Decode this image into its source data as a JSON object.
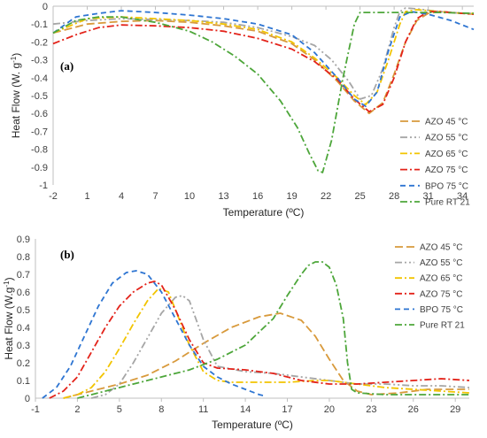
{
  "colors": {
    "AZO 45 °C": "#d89a3c",
    "AZO 55 °C": "#a6a6a6",
    "AZO 65 °C": "#f2c400",
    "AZO 75 °C": "#e3231a",
    "BPO 75 °C": "#2e75d2",
    "Pure RT 21": "#4da63a"
  },
  "chart_data": [
    {
      "type": "line",
      "panel_label": "(a)",
      "ylabel": "Heat Flow (W. g",
      "ylabel_sup": "-1",
      "ylabel_tail": ")",
      "xlabel": "Temperature (ºC)",
      "xlim": [
        -2,
        35
      ],
      "ylim": [
        -1,
        0
      ],
      "xticks": [
        "-2",
        "1",
        "4",
        "7",
        "10",
        "13",
        "16",
        "19",
        "22",
        "25",
        "28",
        "31",
        "34"
      ],
      "yticks": [
        "0",
        "-0.1",
        "-0.2",
        "-0.3",
        "-0.4",
        "-0.5",
        "-0.6",
        "-0.7",
        "-0.8",
        "-0.9",
        "-1"
      ],
      "legend_position": "right",
      "series": [
        {
          "name": "AZO 45 °C",
          "dash": "long",
          "x": [
            -2,
            1,
            4,
            7,
            10,
            13,
            16,
            19,
            21,
            23,
            24.5,
            25.8,
            27,
            28,
            29,
            30,
            31,
            32,
            33,
            34,
            35
          ],
          "y": [
            -0.15,
            -0.1,
            -0.085,
            -0.08,
            -0.09,
            -0.11,
            -0.14,
            -0.21,
            -0.3,
            -0.42,
            -0.53,
            -0.6,
            -0.54,
            -0.38,
            -0.2,
            -0.08,
            -0.04,
            -0.03,
            -0.035,
            -0.04,
            -0.045
          ]
        },
        {
          "name": "AZO 55 °C",
          "dash": "dashdotdot",
          "x": [
            -2,
            1,
            4,
            7,
            10,
            13,
            16,
            19,
            21,
            22.5,
            24,
            25,
            26,
            27,
            28,
            28.5,
            29,
            30,
            32,
            34,
            35
          ],
          "y": [
            -0.1,
            -0.08,
            -0.07,
            -0.075,
            -0.08,
            -0.09,
            -0.12,
            -0.17,
            -0.22,
            -0.3,
            -0.42,
            -0.52,
            -0.5,
            -0.35,
            -0.12,
            -0.03,
            -0.01,
            -0.015,
            -0.03,
            -0.04,
            -0.04
          ]
        },
        {
          "name": "AZO 65 °C",
          "dash": "dashdot",
          "x": [
            -2,
            1,
            4,
            7,
            10,
            13,
            16,
            19,
            21,
            23,
            24.5,
            25.5,
            26.5,
            27.5,
            28.5,
            29,
            30,
            32,
            34,
            35
          ],
          "y": [
            -0.15,
            -0.07,
            -0.06,
            -0.07,
            -0.08,
            -0.1,
            -0.13,
            -0.2,
            -0.29,
            -0.4,
            -0.5,
            -0.55,
            -0.48,
            -0.3,
            -0.1,
            -0.03,
            -0.02,
            -0.03,
            -0.04,
            -0.04
          ]
        },
        {
          "name": "AZO 75 °C",
          "dash": "dashdot",
          "x": [
            -2,
            0,
            2,
            4,
            7,
            10,
            13,
            16,
            19,
            21,
            23,
            24.5,
            25.8,
            27,
            28,
            29,
            30,
            31,
            32,
            34,
            35
          ],
          "y": [
            -0.21,
            -0.16,
            -0.12,
            -0.105,
            -0.11,
            -0.12,
            -0.14,
            -0.18,
            -0.24,
            -0.31,
            -0.41,
            -0.52,
            -0.59,
            -0.55,
            -0.4,
            -0.2,
            -0.07,
            -0.03,
            -0.03,
            -0.04,
            -0.045
          ]
        },
        {
          "name": "BPO 75 °C",
          "dash": "dash",
          "x": [
            -2,
            0,
            2,
            4,
            7,
            10,
            13,
            16,
            19,
            21,
            23,
            24.5,
            25.5,
            26.5,
            27.5,
            28.5,
            29.5,
            31,
            33,
            35
          ],
          "y": [
            -0.15,
            -0.06,
            -0.04,
            -0.025,
            -0.035,
            -0.05,
            -0.07,
            -0.1,
            -0.16,
            -0.26,
            -0.4,
            -0.52,
            -0.56,
            -0.48,
            -0.25,
            -0.06,
            -0.03,
            -0.045,
            -0.08,
            -0.13
          ]
        },
        {
          "name": "Pure RT 21",
          "dash": "dashdot",
          "x": [
            -2,
            0,
            2,
            4,
            7,
            10,
            12,
            14,
            16,
            18,
            19.5,
            20.5,
            21.3,
            21.7,
            22.5,
            23.5,
            24.5,
            25,
            26,
            28,
            30,
            32,
            35
          ],
          "y": [
            -0.15,
            -0.08,
            -0.06,
            -0.06,
            -0.09,
            -0.14,
            -0.2,
            -0.28,
            -0.38,
            -0.53,
            -0.68,
            -0.82,
            -0.92,
            -0.93,
            -0.75,
            -0.4,
            -0.1,
            -0.035,
            -0.035,
            -0.035,
            -0.035,
            -0.035,
            -0.04
          ]
        }
      ]
    },
    {
      "type": "line",
      "panel_label": "(b)",
      "ylabel": "Heat Flow (W.g",
      "ylabel_sup": "-1",
      "ylabel_tail": ")",
      "xlabel": "Temperature (ºC)",
      "xlim": [
        -1,
        30
      ],
      "ylim": [
        0,
        0.9
      ],
      "xticks": [
        "-1",
        "2",
        "5",
        "8",
        "11",
        "14",
        "17",
        "20",
        "23",
        "26",
        "29"
      ],
      "yticks": [
        "0",
        "0.1",
        "0.2",
        "0.3",
        "0.4",
        "0.5",
        "0.6",
        "0.7",
        "0.8",
        "0.9"
      ],
      "legend_position": "right",
      "series": [
        {
          "name": "AZO 45 °C",
          "dash": "long",
          "x": [
            1,
            3,
            5,
            7,
            9,
            11,
            13,
            15,
            16.5,
            18,
            19,
            20,
            21,
            22,
            23,
            25,
            27,
            29,
            30
          ],
          "y": [
            0.0,
            0.04,
            0.08,
            0.13,
            0.21,
            0.31,
            0.4,
            0.46,
            0.48,
            0.44,
            0.35,
            0.22,
            0.1,
            0.04,
            0.02,
            0.03,
            0.05,
            0.05,
            0.05
          ]
        },
        {
          "name": "AZO 55 °C",
          "dash": "dashdotdot",
          "x": [
            3,
            4,
            5,
            6,
            7,
            8,
            9,
            9.5,
            10,
            11,
            12,
            14,
            16,
            18,
            20,
            22,
            24,
            26,
            28,
            30
          ],
          "y": [
            0.0,
            0.02,
            0.08,
            0.2,
            0.34,
            0.48,
            0.57,
            0.58,
            0.55,
            0.33,
            0.18,
            0.15,
            0.14,
            0.12,
            0.1,
            0.08,
            0.08,
            0.07,
            0.07,
            0.06
          ]
        },
        {
          "name": "AZO 65 °C",
          "dash": "dashdot",
          "x": [
            1,
            2,
            3,
            4,
            5,
            6,
            7,
            7.8,
            8.5,
            9,
            10,
            11,
            12,
            13,
            15,
            17,
            19,
            20,
            22,
            24,
            26,
            28,
            30
          ],
          "y": [
            0.0,
            0.02,
            0.06,
            0.15,
            0.28,
            0.42,
            0.55,
            0.62,
            0.6,
            0.5,
            0.3,
            0.15,
            0.1,
            0.09,
            0.09,
            0.09,
            0.1,
            0.1,
            0.08,
            0.06,
            0.05,
            0.04,
            0.03
          ]
        },
        {
          "name": "AZO 75 °C",
          "dash": "dashdot",
          "x": [
            0,
            1,
            2,
            3,
            4,
            5,
            6,
            7,
            7.5,
            8,
            9,
            10,
            11,
            12,
            14,
            16,
            18,
            20,
            22,
            24,
            26,
            28,
            30
          ],
          "y": [
            0.0,
            0.04,
            0.12,
            0.26,
            0.4,
            0.52,
            0.6,
            0.65,
            0.66,
            0.64,
            0.5,
            0.33,
            0.2,
            0.17,
            0.16,
            0.14,
            0.1,
            0.08,
            0.08,
            0.09,
            0.1,
            0.11,
            0.1
          ]
        },
        {
          "name": "BPO 75 °C",
          "dash": "dash",
          "x": [
            -0.5,
            0.5,
            1.5,
            2.5,
            3.5,
            4.5,
            5.5,
            6.2,
            7,
            8,
            9,
            10,
            11,
            12,
            13,
            14,
            15,
            15.5
          ],
          "y": [
            0.0,
            0.06,
            0.18,
            0.35,
            0.52,
            0.65,
            0.71,
            0.72,
            0.7,
            0.6,
            0.45,
            0.3,
            0.18,
            0.12,
            0.08,
            0.05,
            0.02,
            0.01
          ]
        },
        {
          "name": "Pure RT 21",
          "dash": "dashdot",
          "x": [
            2,
            4,
            6,
            8,
            10,
            12,
            14,
            16,
            17,
            18,
            18.5,
            19,
            19.5,
            20,
            20.5,
            21,
            21.3,
            21.6,
            22,
            24,
            26,
            28,
            30
          ],
          "y": [
            0.0,
            0.04,
            0.08,
            0.12,
            0.16,
            0.22,
            0.3,
            0.45,
            0.58,
            0.7,
            0.75,
            0.77,
            0.77,
            0.74,
            0.64,
            0.45,
            0.2,
            0.05,
            0.03,
            0.02,
            0.02,
            0.02,
            0.02
          ]
        }
      ]
    }
  ]
}
